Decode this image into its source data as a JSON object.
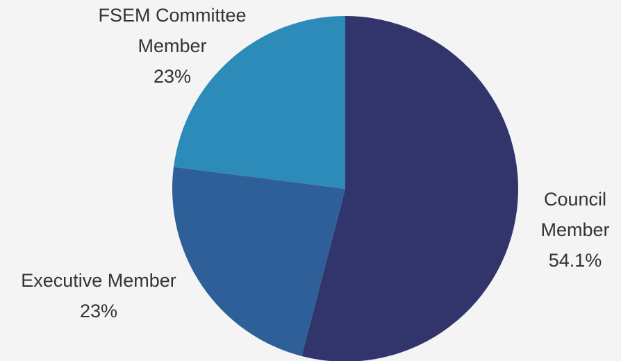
{
  "chart_data": {
    "type": "pie",
    "categories": [
      "Council Member",
      "Executive Member",
      "FSEM Committee Member"
    ],
    "values": [
      54.1,
      23,
      23
    ],
    "value_labels": [
      "54.1%",
      "23%",
      "23%"
    ],
    "colors": [
      "#31356b",
      "#2e5f98",
      "#2d8bba"
    ]
  }
}
